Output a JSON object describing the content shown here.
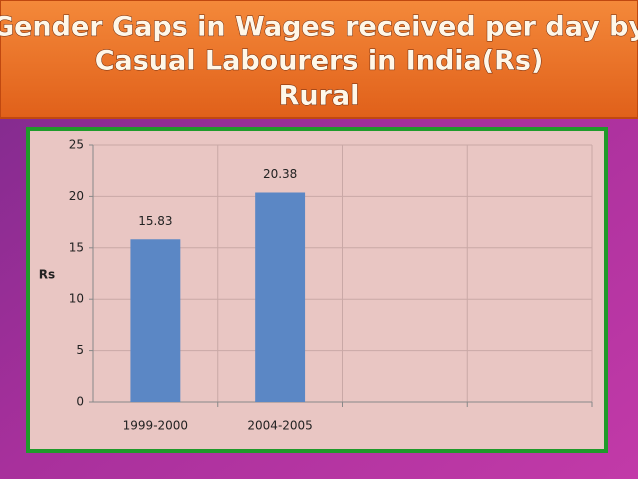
{
  "chart_data": {
    "type": "bar",
    "title_lines": [
      "Gender Gaps  in Wages received per day by",
      "Casual Labourers in India(Rs)",
      "Rural"
    ],
    "y_label": "Rs",
    "categories": [
      "1999-2000",
      "2004-2005",
      null,
      null
    ],
    "values": [
      15.83,
      20.38,
      null,
      null
    ],
    "color": "#5b87c5",
    "ylim": [
      0,
      25
    ],
    "yticks": [
      0,
      5,
      10,
      15,
      20,
      25
    ],
    "grid": true
  }
}
